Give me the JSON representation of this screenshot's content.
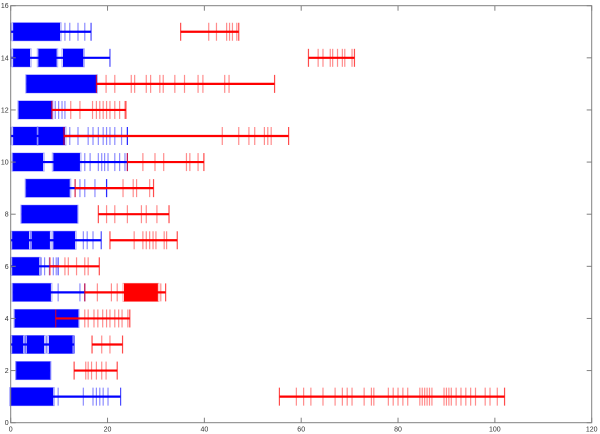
{
  "chart_data": {
    "type": "scatter",
    "title": "",
    "xlabel": "",
    "ylabel": "",
    "xlim": [
      0,
      120
    ],
    "ylim": [
      0,
      16
    ],
    "xticks": [
      "0",
      "20",
      "40",
      "60",
      "80",
      "100",
      "120"
    ],
    "yticks": [
      "0",
      "2",
      "4",
      "6",
      "8",
      "10",
      "12",
      "14",
      "16"
    ],
    "xtick_values": [
      0,
      20,
      40,
      60,
      80,
      100,
      120
    ],
    "ytick_values": [
      0,
      2,
      4,
      6,
      8,
      10,
      12,
      14,
      16
    ],
    "grid": false,
    "colors": {
      "blue": "#0000ff",
      "red": "#ff0000",
      "axis": "#808080"
    },
    "rows": [
      {
        "y": 1,
        "blue": {
          "start": 0,
          "end": 22.7,
          "blocks": [
            [
              0,
              8.8
            ]
          ],
          "ticks": [
            9.8,
            15,
            17,
            17.7,
            18.4,
            19.1,
            20.1
          ]
        },
        "red": {
          "start": 55.5,
          "end": 102,
          "blocks": [],
          "ticks": [
            59,
            60.5,
            62,
            64.5,
            67,
            68.5,
            69.5,
            70.5,
            73,
            74.5,
            75,
            78,
            79,
            80,
            81,
            82,
            84.5,
            85,
            85.5,
            86,
            86.5,
            87,
            89.5,
            90,
            90.5,
            91,
            92,
            93,
            94,
            95,
            96,
            98,
            99,
            100.5
          ]
        }
      },
      {
        "y": 2,
        "blue": {
          "start": 1.2,
          "end": 8.1,
          "blocks": [
            [
              1.2,
              8.1
            ]
          ],
          "ticks": []
        },
        "red": {
          "start": 13.1,
          "end": 22,
          "blocks": [],
          "ticks": [
            15.5,
            16,
            16.7,
            17.7,
            18.8,
            19.7
          ]
        }
      },
      {
        "y": 3,
        "blue": {
          "start": 0,
          "end": 13.1,
          "blocks": [
            [
              0.3,
              2.6
            ],
            [
              3.3,
              6.9
            ],
            [
              7.9,
              12.8
            ]
          ],
          "ticks": [
            3,
            7.4
          ]
        },
        "red": {
          "start": 16.8,
          "end": 23.1,
          "blocks": [],
          "ticks": [
            18.8,
            20.5
          ]
        }
      },
      {
        "y": 4,
        "blue": {
          "start": 0.9,
          "end": 13.9,
          "blocks": [
            [
              0.9,
              13.9
            ]
          ],
          "ticks": []
        },
        "red": {
          "start": 9.3,
          "end": 24.6,
          "blocks": [],
          "ticks": [
            15.3,
            16,
            17.2,
            18,
            19,
            19.8,
            20.5,
            21.5,
            22.3,
            23,
            24.2
          ]
        }
      },
      {
        "y": 5,
        "blue": {
          "start": 0.5,
          "end": 15.3,
          "blocks": [
            [
              0.5,
              8.3
            ]
          ],
          "ticks": [
            9.8,
            14.3
          ]
        },
        "red": {
          "start": 15.3,
          "end": 32,
          "blocks": [
            [
              23.4,
              30.4
            ]
          ],
          "ticks": [
            17.9,
            20.8,
            22,
            31
          ]
        }
      },
      {
        "y": 6,
        "blue": {
          "start": 0,
          "end": 9.8,
          "blocks": [
            [
              0.3,
              5.9
            ]
          ],
          "ticks": [
            6.3,
            7,
            8,
            8.8,
            9.4
          ]
        },
        "red": {
          "start": 8.1,
          "end": 18.3,
          "blocks": [],
          "ticks": [
            11.2,
            11.9,
            13.6,
            15.3,
            16
          ]
        }
      },
      {
        "y": 7,
        "blue": {
          "start": 0,
          "end": 18.7,
          "blocks": [
            [
              0.3,
              3.8
            ],
            [
              4.3,
              8.1
            ],
            [
              8.8,
              13.3
            ]
          ],
          "ticks": [
            15,
            15.8,
            17
          ]
        },
        "red": {
          "start": 20.5,
          "end": 34.4,
          "blocks": [],
          "ticks": [
            25.5,
            27.3,
            28,
            28.7,
            29.4,
            30,
            31.7,
            32.2
          ]
        }
      },
      {
        "y": 8,
        "blue": {
          "start": 2.3,
          "end": 13.7,
          "blocks": [
            [
              2.3,
              13.7
            ]
          ],
          "ticks": []
        },
        "red": {
          "start": 18.1,
          "end": 32.7,
          "blocks": [],
          "ticks": [
            19.8,
            21.5,
            24.1,
            27,
            28,
            30.2
          ]
        }
      },
      {
        "y": 9,
        "blue": {
          "start": 3.2,
          "end": 19.8,
          "blocks": [
            [
              3.2,
              12.2
            ]
          ],
          "ticks": [
            13.3,
            14.3,
            15.3,
            17.4,
            19.8
          ]
        },
        "red": {
          "start": 13.3,
          "end": 29.5,
          "blocks": [],
          "ticks": [
            23.2,
            25.3,
            26,
            28.7
          ]
        }
      },
      {
        "y": 10,
        "blue": {
          "start": 0.5,
          "end": 24.1,
          "blocks": [
            [
              0.5,
              6.7
            ],
            [
              8.8,
              14.3
            ]
          ],
          "ticks": [
            15.3,
            16.4,
            18.1,
            18.8,
            19.4,
            20.1,
            21.5,
            22.5,
            23.6
          ]
        },
        "red": {
          "start": 24.1,
          "end": 39.9,
          "blocks": [],
          "ticks": [
            27.3,
            29.8,
            31.6,
            36.3,
            37,
            38.7
          ]
        }
      },
      {
        "y": 11,
        "blue": {
          "start": 0,
          "end": 24.1,
          "blocks": [
            [
              0.5,
              5.4
            ],
            [
              5.7,
              11.2
            ]
          ],
          "ticks": [
            12.2,
            13.9,
            16,
            17,
            18.1,
            19.1,
            19.8,
            20.5,
            21.5,
            22.9,
            24.1
          ]
        },
        "red": {
          "start": 11,
          "end": 57.4,
          "blocks": [],
          "ticks": [
            43.7,
            47.1,
            49.2,
            50.4,
            52.4,
            53.1,
            53.8
          ]
        }
      },
      {
        "y": 12,
        "blue": {
          "start": 1.7,
          "end": 8.5,
          "blocks": [
            [
              1.7,
              8.5
            ]
          ],
          "ticks": [
            9.2,
            9.9,
            10.6,
            11.2
          ]
        },
        "red": {
          "start": 8.5,
          "end": 23.8,
          "blocks": [],
          "ticks": [
            12.4,
            14.3,
            16.9,
            17.7,
            18.4,
            19.1,
            19.8,
            20.5,
            21.5,
            22.5,
            23.6
          ]
        }
      },
      {
        "y": 13,
        "blue": {
          "start": 3.3,
          "end": 17.7,
          "blocks": [
            [
              3.3,
              17.7
            ]
          ],
          "ticks": []
        },
        "red": {
          "start": 17.7,
          "end": 54.5,
          "blocks": [],
          "ticks": [
            19.7,
            21.5,
            24.9,
            25.6,
            28,
            28.9,
            30.8,
            31.5,
            33.9,
            35.9,
            38.7,
            39.7,
            44.2,
            45.1
          ]
        }
      },
      {
        "y": 14,
        "blue": {
          "start": 0,
          "end": 20.5,
          "blocks": [
            [
              0.5,
              4
            ],
            [
              5.7,
              9.5
            ],
            [
              10.8,
              15
            ]
          ],
          "ticks": []
        },
        "red": {
          "start": 61.5,
          "end": 71,
          "blocks": [],
          "ticks": [
            63.5,
            64.5,
            66,
            66.5,
            67.5,
            68.5,
            69,
            70.5
          ]
        }
      },
      {
        "y": 15,
        "blue": {
          "start": 0,
          "end": 16.6,
          "blocks": [
            [
              0.5,
              10.2
            ]
          ],
          "ticks": [
            11.2,
            12.2,
            13.9,
            15.3
          ]
        },
        "red": {
          "start": 35.1,
          "end": 47.1,
          "blocks": [],
          "ticks": [
            40.9,
            42.5,
            44.6,
            45.2,
            45.8,
            46.7
          ]
        }
      }
    ]
  }
}
